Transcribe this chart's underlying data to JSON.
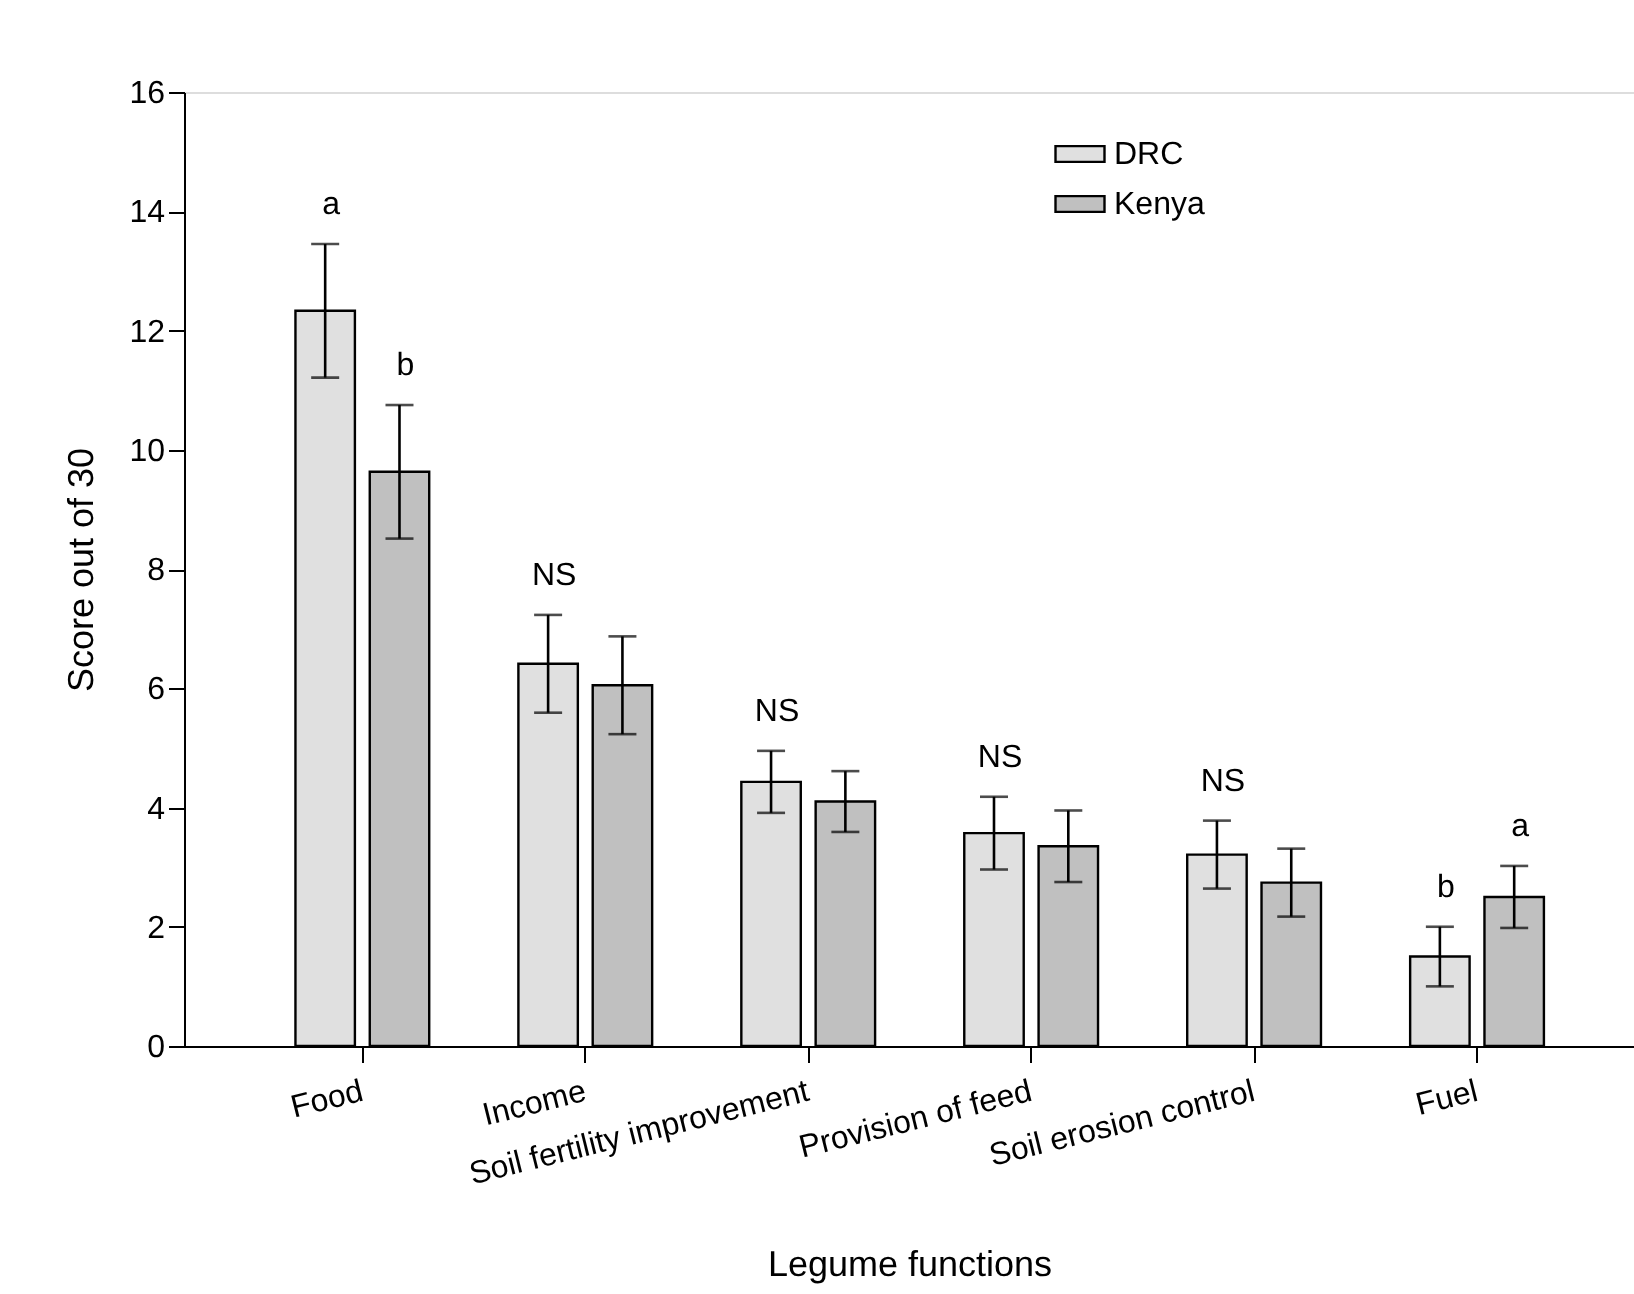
{
  "chart_data": {
    "type": "bar",
    "xlabel": "Legume functions",
    "ylabel": "Score out of 30",
    "categories": [
      "Food",
      "Income",
      "Soil fertility improvement",
      "Provision of feed",
      "Soil erosion control",
      "Fuel"
    ],
    "series": [
      {
        "name": "DRC",
        "color": "#e0e0e0",
        "values": [
          12.33,
          6.41,
          4.43,
          3.57,
          3.21,
          1.5
        ],
        "errors": [
          1.12,
          0.82,
          0.52,
          0.61,
          0.57,
          0.5
        ],
        "value_labels": [
          "a",
          "NS",
          "NS",
          "NS",
          "NS",
          "b"
        ]
      },
      {
        "name": "Kenya",
        "color": "#c0c0c0",
        "values": [
          9.63,
          6.05,
          4.1,
          3.35,
          2.74,
          2.5
        ],
        "errors": [
          1.12,
          0.82,
          0.51,
          0.6,
          0.57,
          0.52
        ],
        "value_labels": [
          "b",
          null,
          null,
          null,
          null,
          "a"
        ]
      }
    ],
    "ylim": [
      0,
      16
    ],
    "yticks": [
      0,
      2,
      4,
      6,
      8,
      10,
      12,
      14,
      16
    ],
    "grid": false,
    "legend": "top right"
  }
}
